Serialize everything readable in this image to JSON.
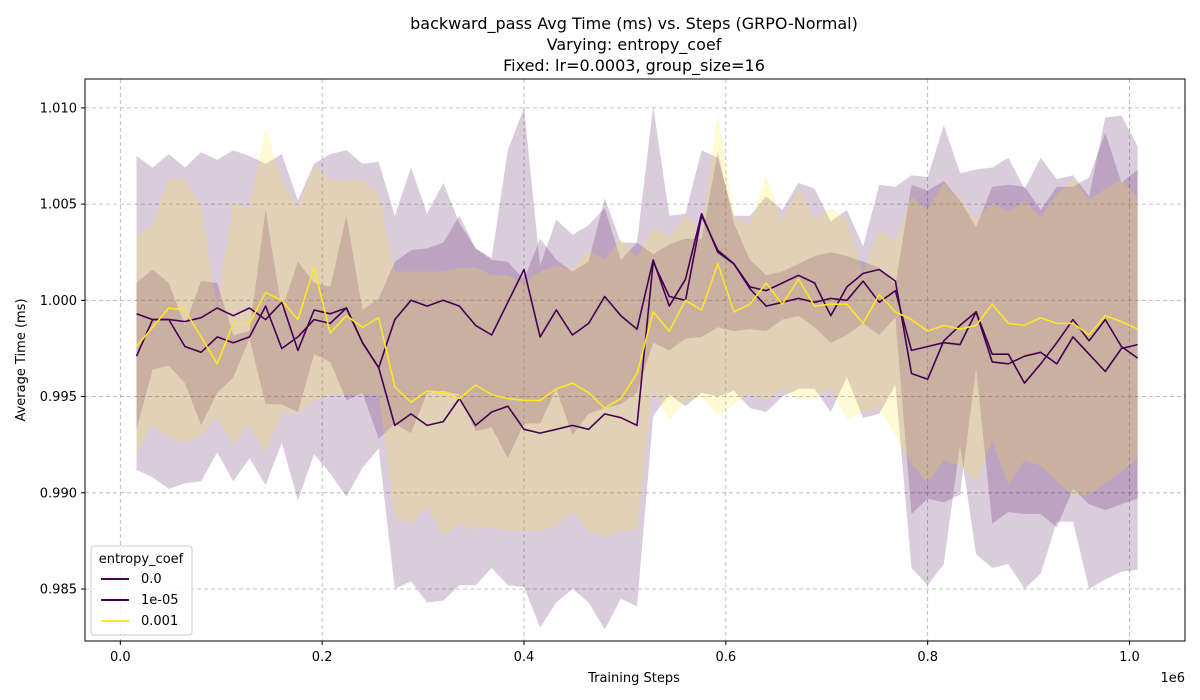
{
  "chart_data": {
    "type": "line",
    "title": [
      "backward_pass Avg Time (ms) vs. Steps (GRPO-Normal)",
      "Varying: entropy_coef",
      "Fixed: lr=0.0003, group_size=16"
    ],
    "xlabel": "Training Steps",
    "ylabel": "Average Time (ms)",
    "x_multiplier_label": "1e6",
    "xlim": [
      -0.035,
      1.055
    ],
    "ylim": [
      0.9823,
      1.0115
    ],
    "x_ticks": [
      0.0,
      0.2,
      0.4,
      0.6,
      0.8,
      1.0
    ],
    "x_tick_labels": [
      "0.0",
      "0.2",
      "0.4",
      "0.6",
      "0.8",
      "1.0"
    ],
    "y_ticks": [
      0.985,
      0.99,
      0.995,
      1.0,
      1.005,
      1.01
    ],
    "y_tick_labels": [
      "0.985",
      "0.990",
      "0.995",
      "1.000",
      "1.005",
      "1.010"
    ],
    "grid": true,
    "legend": {
      "title": "entropy_coef",
      "placement": "lower-left"
    },
    "x": [
      0.016,
      0.032,
      0.048,
      0.064,
      0.08,
      0.096,
      0.112,
      0.128,
      0.144,
      0.16,
      0.176,
      0.192,
      0.208,
      0.224,
      0.24,
      0.256,
      0.272,
      0.288,
      0.304,
      0.32,
      0.336,
      0.352,
      0.368,
      0.384,
      0.4,
      0.416,
      0.432,
      0.448,
      0.464,
      0.48,
      0.496,
      0.512,
      0.528,
      0.544,
      0.56,
      0.576,
      0.592,
      0.608,
      0.624,
      0.64,
      0.656,
      0.672,
      0.688,
      0.704,
      0.72,
      0.736,
      0.752,
      0.768,
      0.784,
      0.8,
      0.816,
      0.832,
      0.848,
      0.864,
      0.88,
      0.896,
      0.912,
      0.928,
      0.944,
      0.96,
      0.976,
      0.992,
      1.008
    ],
    "series": [
      {
        "name": "0.0",
        "color": "#440154",
        "values": [
          0.9993,
          0.999,
          0.999,
          0.9989,
          0.9991,
          0.9996,
          0.9992,
          0.9996,
          0.999,
          0.9999,
          0.9974,
          0.9995,
          0.9993,
          0.9996,
          0.9978,
          0.9965,
          0.999,
          1.0,
          0.9997,
          1.0,
          0.9997,
          0.9987,
          0.9982,
          0.9999,
          1.0016,
          0.9981,
          0.9995,
          0.9982,
          0.9988,
          1.0002,
          0.9992,
          0.9985,
          1.0021,
          0.9997,
          1.0011,
          1.0045,
          1.0025,
          1.0019,
          1.0007,
          1.0005,
          1.0009,
          1.0013,
          1.0009,
          0.9992,
          1.0007,
          1.0014,
          1.0016,
          1.001,
          0.9962,
          0.9959,
          0.9979,
          0.9987,
          0.9994,
          0.9972,
          0.9972,
          0.9957,
          0.9967,
          0.9978,
          0.999,
          0.9979,
          0.999,
          0.9976,
          0.997
        ],
        "lower": [
          0.9933,
          0.9964,
          0.9966,
          0.9957,
          0.9935,
          0.9952,
          0.996,
          0.998,
          0.9946,
          0.9946,
          0.9942,
          0.9972,
          0.9968,
          0.9948,
          0.9952,
          0.9928,
          0.9936,
          0.9931,
          0.9952,
          0.9953,
          0.9951,
          0.9932,
          0.9934,
          0.9918,
          0.9936,
          0.9936,
          0.9954,
          0.993,
          0.9941,
          0.9944,
          0.9946,
          0.9952,
          0.9978,
          0.9974,
          0.998,
          0.9981,
          0.9986,
          0.9984,
          0.9985,
          0.9984,
          0.999,
          0.9992,
          0.9986,
          0.9978,
          0.9982,
          0.9988,
          0.9982,
          0.9991,
          0.9889,
          0.9897,
          0.9895,
          0.9899,
          0.9965,
          0.9884,
          0.989,
          0.9889,
          0.9889,
          0.9882,
          0.9902,
          0.9894,
          0.9891,
          0.9894,
          0.9897
        ],
        "upper": [
          1.0009,
          1.0016,
          1.0009,
          0.9987,
          1.001,
          1.0009,
          0.9982,
          0.9984,
          1.0047,
          0.9995,
          1.002,
          1.0009,
          1.0007,
          1.0044,
          0.9995,
          1.0001,
          1.002,
          1.0026,
          1.0027,
          1.003,
          1.0044,
          1.0027,
          1.0021,
          1.002,
          1.0011,
          1.0032,
          1.0021,
          1.0015,
          1.002,
          1.0053,
          1.003,
          1.003,
          1.0024,
          1.0029,
          1.0032,
          1.0032,
          1.0077,
          1.004,
          1.0021,
          1.0013,
          1.0015,
          1.0019,
          1.0023,
          1.0025,
          1.0023,
          1.002,
          1.0017,
          1.0008,
          1.006,
          1.0057,
          1.0062,
          1.0052,
          1.0038,
          1.0059,
          1.006,
          1.0059,
          1.0047,
          1.0059,
          1.0059,
          1.0064,
          1.0087,
          1.0061,
          1.0068
        ]
      },
      {
        "name": "1e-05",
        "color": "#440154",
        "values": [
          0.9971,
          0.999,
          0.999,
          0.9976,
          0.9973,
          0.9981,
          0.9978,
          0.9981,
          0.9997,
          0.9975,
          0.9981,
          0.999,
          0.9988,
          0.9996,
          0.9978,
          0.9965,
          0.9935,
          0.9941,
          0.9935,
          0.9937,
          0.9949,
          0.9935,
          0.9942,
          0.9945,
          0.9933,
          0.9931,
          0.9933,
          0.9935,
          0.9933,
          0.9941,
          0.9939,
          0.9935,
          1.002,
          1.0002,
          1.0,
          1.0044,
          1.0026,
          1.0019,
          1.0006,
          0.9997,
          0.9999,
          1.0001,
          0.9999,
          1.0001,
          1.0,
          1.001,
          0.9999,
          1.0005,
          0.9974,
          0.9976,
          0.9978,
          0.9977,
          0.9994,
          0.9968,
          0.9967,
          0.9971,
          0.9973,
          0.9967,
          0.9981,
          0.9972,
          0.9963,
          0.9975,
          0.9977
        ],
        "lower": [
          0.9912,
          0.9908,
          0.9902,
          0.9905,
          0.9906,
          0.9921,
          0.9906,
          0.9918,
          0.9904,
          0.9926,
          0.9896,
          0.992,
          0.991,
          0.9898,
          0.9913,
          0.9923,
          0.985,
          0.9854,
          0.9843,
          0.9844,
          0.9852,
          0.9852,
          0.9861,
          0.9852,
          0.9851,
          0.983,
          0.9843,
          0.985,
          0.9843,
          0.9829,
          0.9845,
          0.9841,
          0.994,
          0.9951,
          0.9945,
          0.9952,
          0.995,
          0.9953,
          0.9944,
          0.9942,
          0.995,
          0.9954,
          0.9954,
          0.9942,
          0.996,
          0.9939,
          0.9941,
          0.9956,
          0.9861,
          0.9852,
          0.9863,
          0.9925,
          0.9868,
          0.9861,
          0.9863,
          0.985,
          0.9858,
          0.9885,
          0.9885,
          0.985,
          0.9855,
          0.9859,
          0.986
        ],
        "upper": [
          1.0075,
          1.0069,
          1.0076,
          1.0069,
          1.0077,
          1.0073,
          1.0078,
          1.0075,
          1.0071,
          1.0076,
          1.0052,
          1.0071,
          1.0076,
          1.0078,
          1.0071,
          1.0072,
          1.0044,
          1.0069,
          1.0045,
          1.0061,
          1.004,
          1.0027,
          1.0022,
          1.0078,
          1.01,
          1.0018,
          1.0042,
          1.0034,
          1.0039,
          1.0048,
          1.0021,
          1.003,
          1.0101,
          1.0044,
          1.0045,
          1.0078,
          1.0074,
          1.0044,
          1.0044,
          1.0054,
          1.0047,
          1.0061,
          1.0058,
          1.0041,
          1.0047,
          1.0028,
          1.006,
          1.0059,
          1.0065,
          1.0064,
          1.0091,
          1.0066,
          1.0068,
          1.0069,
          1.0074,
          1.0058,
          1.0074,
          1.0063,
          1.0065,
          1.0054,
          1.0095,
          1.0096,
          1.008
        ]
      },
      {
        "name": "0.001",
        "color": "#fde725",
        "values": [
          0.9976,
          0.9986,
          0.9996,
          0.9995,
          0.9981,
          0.9967,
          0.9988,
          0.9988,
          1.0004,
          1.0,
          0.999,
          1.0017,
          0.9983,
          0.9992,
          0.9986,
          0.9991,
          0.9955,
          0.9947,
          0.9953,
          0.9952,
          0.9949,
          0.9956,
          0.9951,
          0.9949,
          0.9948,
          0.9948,
          0.9954,
          0.9957,
          0.9952,
          0.9944,
          0.9949,
          0.9962,
          0.9994,
          0.9984,
          1.0,
          0.9995,
          1.0019,
          0.9994,
          0.9998,
          1.0009,
          0.9998,
          1.0011,
          0.9997,
          0.9998,
          0.9998,
          0.9988,
          1.0003,
          0.9994,
          0.999,
          0.9984,
          0.9987,
          0.9985,
          0.9987,
          0.9998,
          0.9988,
          0.9987,
          0.9991,
          0.9988,
          0.9988,
          0.9982,
          0.9992,
          0.9989,
          0.9985
        ],
        "lower": [
          0.992,
          0.9935,
          0.9929,
          0.9926,
          0.993,
          0.9939,
          0.9925,
          0.9935,
          0.9921,
          0.9941,
          0.9941,
          0.9948,
          0.9951,
          0.9951,
          0.9951,
          0.9951,
          0.9887,
          0.9884,
          0.9893,
          0.9877,
          0.9884,
          0.9881,
          0.9882,
          0.988,
          0.988,
          0.988,
          0.9883,
          0.989,
          0.988,
          0.9877,
          0.988,
          0.9881,
          0.9954,
          0.9938,
          0.9947,
          0.995,
          0.994,
          0.9946,
          0.9952,
          0.9948,
          0.9954,
          0.9949,
          0.9949,
          0.9955,
          0.9938,
          0.9942,
          0.9944,
          0.993,
          0.9915,
          0.9905,
          0.9917,
          0.9914,
          0.9905,
          0.9927,
          0.9904,
          0.9917,
          0.9914,
          0.9906,
          0.9899,
          0.9899,
          0.9905,
          0.9911,
          0.9918
        ],
        "upper": [
          1.0033,
          1.004,
          1.0064,
          1.0063,
          1.0049,
          0.9996,
          1.0052,
          1.0047,
          1.009,
          1.0062,
          1.0048,
          1.007,
          1.0063,
          1.0062,
          1.0063,
          1.0055,
          1.0015,
          1.0015,
          1.0015,
          1.0015,
          1.0017,
          1.0017,
          1.0013,
          1.0013,
          1.0009,
          1.0015,
          1.0018,
          1.0016,
          1.0026,
          1.0021,
          1.0032,
          1.0022,
          1.0038,
          1.0033,
          1.0044,
          1.0036,
          1.0097,
          1.0044,
          1.0039,
          1.0065,
          1.0041,
          1.0059,
          1.0042,
          1.0048,
          1.0042,
          1.0014,
          1.0037,
          1.003,
          1.0054,
          1.0047,
          1.0061,
          1.0053,
          1.0042,
          1.0051,
          1.0046,
          1.0052,
          1.0043,
          1.0055,
          1.0063,
          1.0052,
          1.0058,
          1.0063,
          1.0053
        ]
      }
    ]
  }
}
